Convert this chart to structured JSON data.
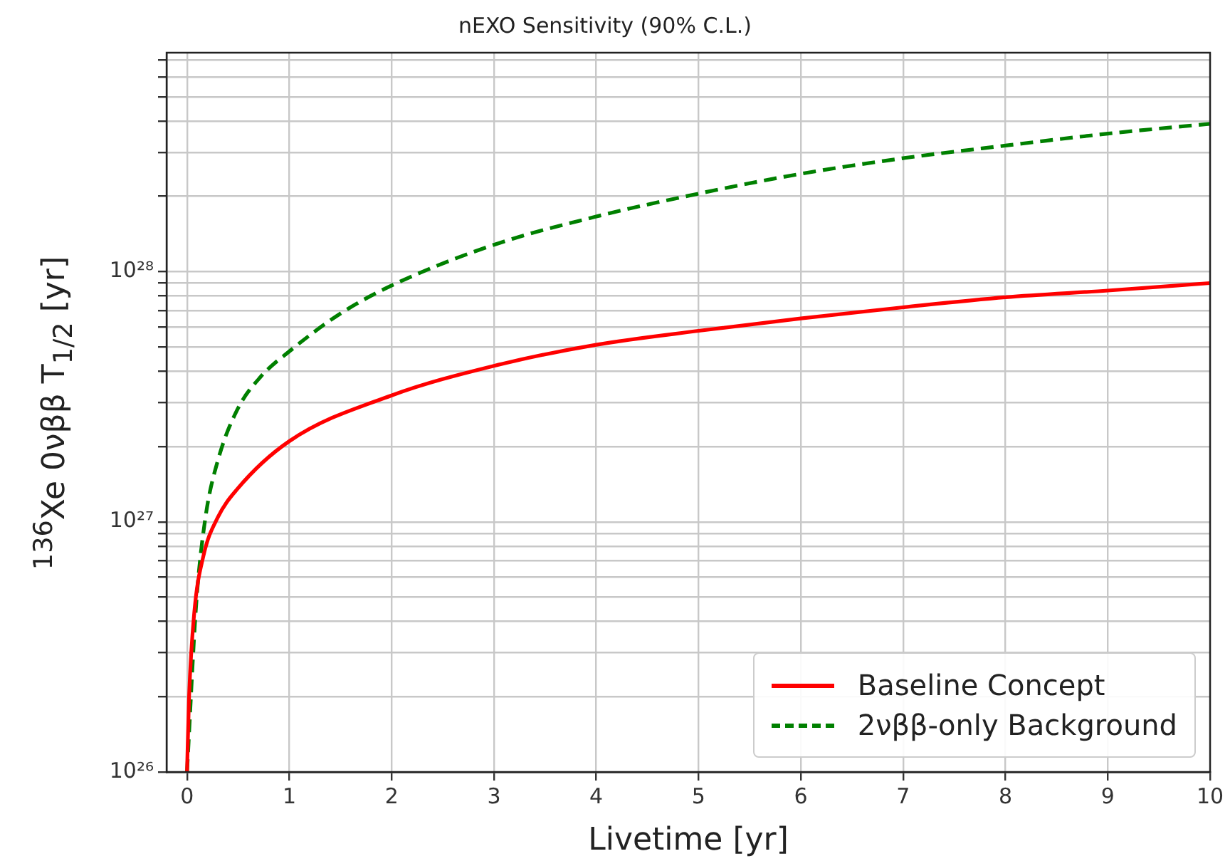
{
  "chart_data": {
    "type": "line",
    "title": "nEXO Sensitivity (90% C.L.)",
    "xlabel": "Livetime [yr]",
    "ylabel": "$^{136}$Xe  0νββ  T$_{1/2}$ [yr]",
    "series": [
      {
        "name": "Baseline Concept",
        "color": "#ff0000",
        "line_style": "solid",
        "x": [
          0,
          0.02,
          0.07,
          0.16,
          0.3,
          0.49,
          1,
          2,
          3,
          4,
          5,
          6,
          7,
          8,
          9,
          10
        ],
        "values": [
          1e+26,
          2e+26,
          4.3e+26,
          7.3e+26,
          1.04e+27,
          1.35e+27,
          2.1e+27,
          3.2e+27,
          4.2e+27,
          5.1e+27,
          5.8e+27,
          6.5e+27,
          7.2e+27,
          7.9e+27,
          8.4e+27,
          9e+27
        ]
      },
      {
        "name": "2νββ-only Background",
        "color": "#008000",
        "line_style": "dashed",
        "x": [
          0,
          0.09,
          0.18,
          0.3,
          0.49,
          0.72,
          1,
          1.5,
          2,
          3,
          4,
          5,
          6,
          7,
          8,
          9,
          10
        ],
        "values": [
          1e+26,
          4.7e+26,
          1.04e+27,
          1.75e+27,
          2.8e+27,
          3.8e+27,
          4.8e+27,
          6.8e+27,
          8.8e+27,
          1.28e+28,
          1.66e+28,
          2.05e+28,
          2.46e+28,
          2.84e+28,
          3.19e+28,
          3.56e+28,
          3.9e+28
        ]
      }
    ],
    "xlim": [
      -0.2,
      10
    ],
    "xticks": [
      0,
      1,
      2,
      3,
      4,
      5,
      6,
      7,
      8,
      9,
      10
    ],
    "ylim": [
      1e+26,
      7.5e+28
    ],
    "log": true,
    "yticks": [
      {
        "value": 1e+26,
        "label": "10²⁶"
      },
      {
        "value": 2e+26,
        "label": null
      },
      {
        "value": 3e+26,
        "label": null
      },
      {
        "value": 4e+26,
        "label": null
      },
      {
        "value": 5e+26,
        "label": null
      },
      {
        "value": 6e+26,
        "label": null
      },
      {
        "value": 7e+26,
        "label": null
      },
      {
        "value": 8e+26,
        "label": null
      },
      {
        "value": 9e+26,
        "label": null
      },
      {
        "value": 1e+27,
        "label": "10²⁷"
      },
      {
        "value": 2e+27,
        "label": null
      },
      {
        "value": 3e+27,
        "label": null
      },
      {
        "value": 4e+27,
        "label": null
      },
      {
        "value": 5e+27,
        "label": null
      },
      {
        "value": 6e+27,
        "label": null
      },
      {
        "value": 7e+27,
        "label": null
      },
      {
        "value": 8e+27,
        "label": null
      },
      {
        "value": 9e+27,
        "label": null
      },
      {
        "value": 1e+28,
        "label": "10²⁸"
      },
      {
        "value": 2e+28,
        "label": null
      },
      {
        "value": 3e+28,
        "label": null
      },
      {
        "value": 4e+28,
        "label": null
      },
      {
        "value": 5e+28,
        "label": null
      },
      {
        "value": 6e+28,
        "label": null
      },
      {
        "value": 7e+28,
        "label": null
      }
    ],
    "grid": true,
    "legend": "bottom right"
  }
}
